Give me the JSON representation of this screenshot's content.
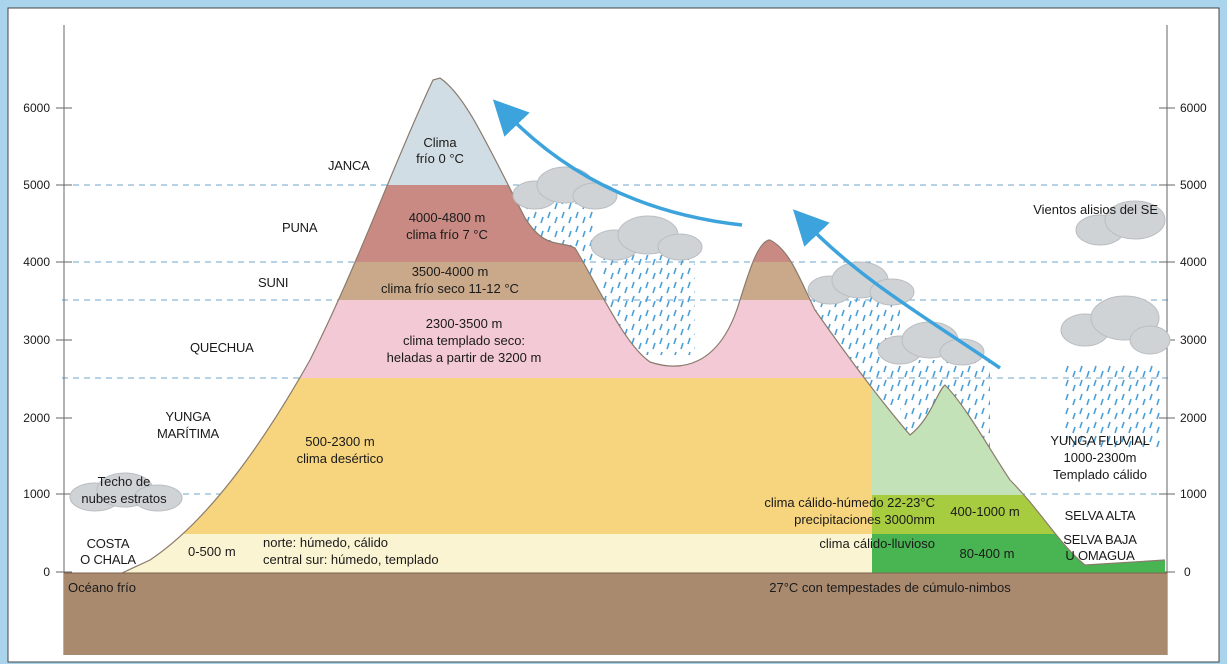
{
  "colors": {
    "frame": "#a9d4ec",
    "ground": "#a98a6f",
    "janca": "#d1dde4",
    "puna": "#c98a84",
    "suni": "#c9a98a",
    "quechua": "#f3c9d6",
    "yunga_maritima": "#f7d57e",
    "costa": "#fbf4d2",
    "yunga_fluvial": "#c3e2b8",
    "selva_alta": "#a8cc3f",
    "selva_baja": "#49b452",
    "wind": "#3da3dc",
    "rain": "#4a9fd8",
    "cloud": "#cfd3d6"
  },
  "axis": {
    "ticks_left": [
      "6000",
      "5000",
      "4000",
      "3000",
      "2000",
      "1000",
      "0"
    ],
    "ticks_right": [
      "6000",
      "5000",
      "4000",
      "3000",
      "2000",
      "1000",
      "0"
    ]
  },
  "labels": {
    "janca": "JANCA",
    "janca_climate_1": "Clima",
    "janca_climate_2": "frío 0 °C",
    "puna": "PUNA",
    "puna_info_1": "4000-4800 m",
    "puna_info_2": "clima frío 7 °C",
    "suni": "SUNI",
    "suni_info_1": "3500-4000 m",
    "suni_info_2": "clima frío seco 11-12 °C",
    "quechua": "QUECHUA",
    "quechua_info_1": "2300-3500 m",
    "quechua_info_2": "clima templado seco:",
    "quechua_info_3": "heladas a partir de 3200 m",
    "yunga_maritima_1": "YUNGA",
    "yunga_maritima_2": "MARÍTIMA",
    "yunga_info_1": "500-2300 m",
    "yunga_info_2": "clima desértico",
    "techo_1": "Techo de",
    "techo_2": "nubes estratos",
    "costa_1": "COSTA",
    "costa_2": "O CHALA",
    "costa_range": "0-500 m",
    "costa_info_1": "norte: húmedo, cálido",
    "costa_info_2": "central sur: húmedo, templado",
    "oceano": "Océano frío",
    "vientos": "Vientos alisios del SE",
    "yunga_fluvial_1": "YUNGA FLUVIAL",
    "yunga_fluvial_2": "1000-2300m",
    "yunga_fluvial_3": "Templado cálido",
    "selva_alta_climate": "clima cálido-húmedo 22-23°C",
    "selva_alta_precip": "precipitaciones 3000mm",
    "selva_alta_range": "400-1000 m",
    "selva_alta": "SELVA ALTA",
    "selva_baja_climate": "clima cálido-lluvioso",
    "selva_baja_range": "80-400 m",
    "selva_baja_1": "SELVA BAJA",
    "selva_baja_2": "U OMAGUA",
    "tempestades": "27°C con tempestades de cúmulo-nimbos"
  }
}
